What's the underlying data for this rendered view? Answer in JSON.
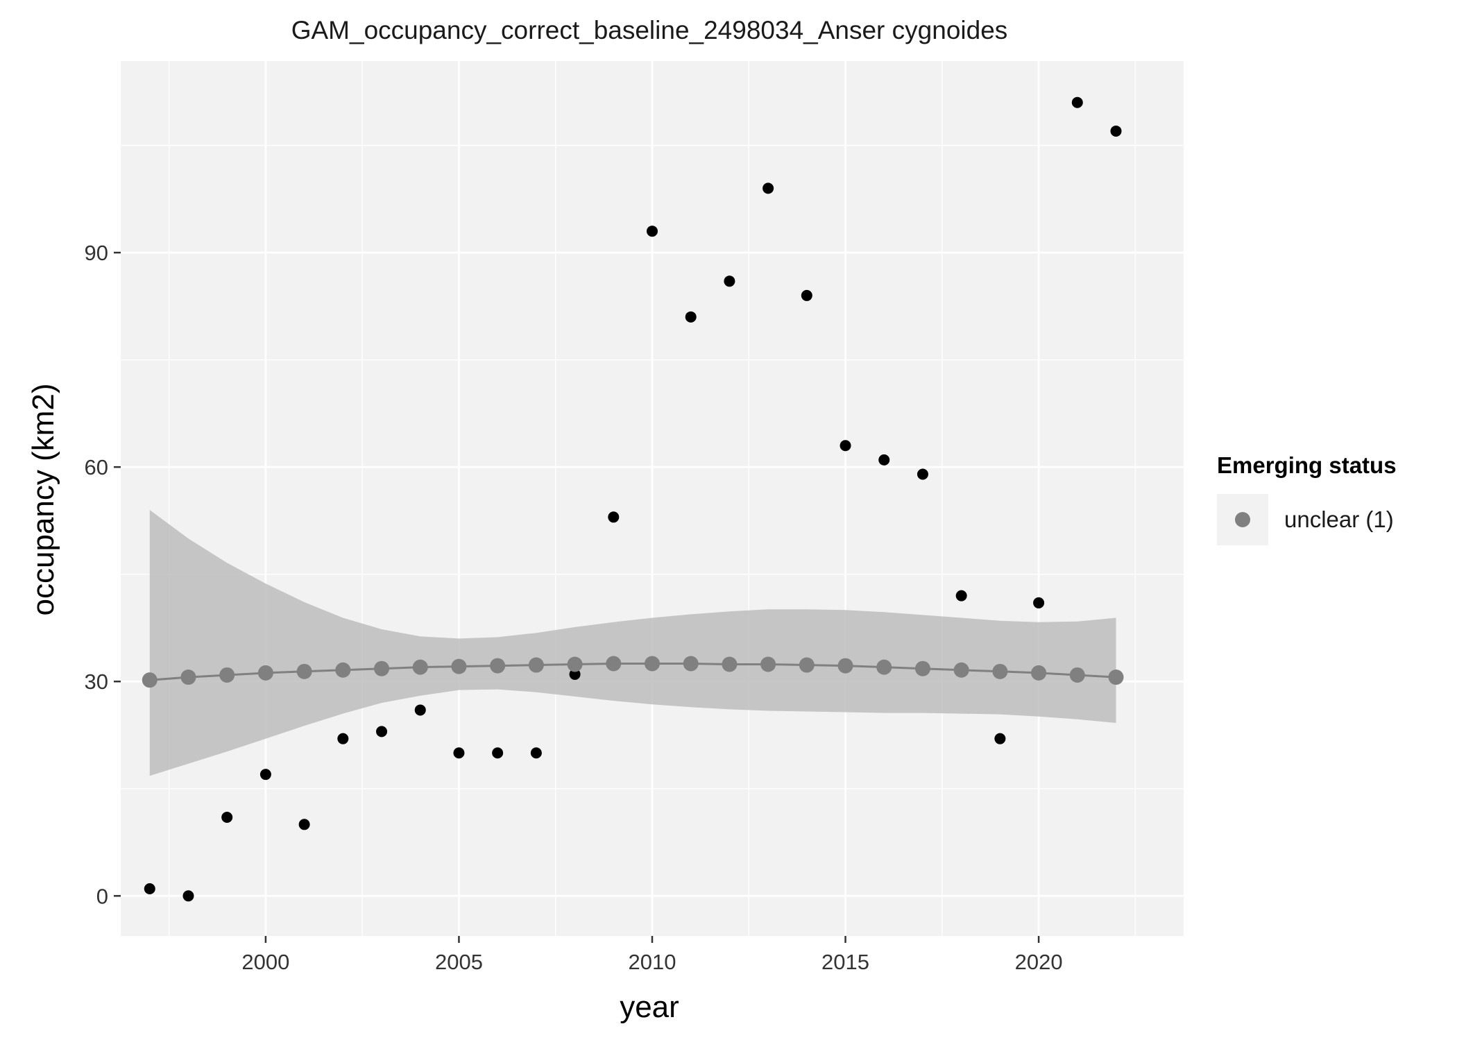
{
  "chart_data": {
    "type": "scatter",
    "title": "GAM_occupancy_correct_baseline_2498034_Anser cygnoides",
    "xlabel": "year",
    "ylabel": "occupancy (km2)",
    "xlim": [
      1996.25,
      2023.75
    ],
    "ylim": [
      -5.6,
      116.8
    ],
    "x_ticks": [
      2000,
      2005,
      2010,
      2015,
      2020
    ],
    "y_ticks": [
      0,
      30,
      60,
      90
    ],
    "grid": true,
    "legend": {
      "title": "Emerging status",
      "position": "right",
      "entries": [
        {
          "label": "unclear (1)",
          "color": "#808080"
        }
      ]
    },
    "series": [
      {
        "kind": "points",
        "color": "#000000",
        "x": [
          1997,
          1998,
          1999,
          2000,
          2001,
          2002,
          2003,
          2004,
          2005,
          2006,
          2007,
          2008,
          2009,
          2010,
          2011,
          2012,
          2013,
          2014,
          2015,
          2016,
          2017,
          2018,
          2019,
          2020,
          2021,
          2022
        ],
        "values": [
          1,
          0,
          11,
          17,
          10,
          22,
          23,
          26,
          20,
          20,
          20,
          31,
          53,
          93,
          81,
          86,
          99,
          84,
          63,
          61,
          59,
          42,
          22,
          41,
          111,
          107
        ]
      },
      {
        "name": "unclear (1)",
        "kind": "fit",
        "color": "#808080",
        "x": [
          1997,
          1998,
          1999,
          2000,
          2001,
          2002,
          2003,
          2004,
          2005,
          2006,
          2007,
          2008,
          2009,
          2010,
          2011,
          2012,
          2013,
          2014,
          2015,
          2016,
          2017,
          2018,
          2019,
          2020,
          2021,
          2022
        ],
        "values": [
          30.2,
          30.6,
          30.9,
          31.2,
          31.4,
          31.6,
          31.8,
          32.0,
          32.1,
          32.2,
          32.3,
          32.4,
          32.5,
          32.5,
          32.5,
          32.4,
          32.4,
          32.3,
          32.2,
          32.0,
          31.8,
          31.6,
          31.4,
          31.2,
          30.9,
          30.6
        ],
        "lower": [
          16.8,
          18.5,
          20.2,
          22.0,
          23.8,
          25.5,
          27.0,
          28.0,
          28.8,
          28.9,
          28.5,
          27.9,
          27.3,
          26.8,
          26.4,
          26.1,
          25.9,
          25.8,
          25.7,
          25.6,
          25.6,
          25.5,
          25.4,
          25.1,
          24.7,
          24.2
        ],
        "upper": [
          54.0,
          50.0,
          46.6,
          43.7,
          41.1,
          38.9,
          37.3,
          36.3,
          36.0,
          36.2,
          36.8,
          37.6,
          38.3,
          38.9,
          39.4,
          39.8,
          40.1,
          40.1,
          40.0,
          39.7,
          39.3,
          38.9,
          38.5,
          38.3,
          38.4,
          38.9
        ]
      }
    ],
    "colors": {
      "panel_background": "#f2f2f2",
      "grid": "#ffffff",
      "ribbon": "#bdbdbd",
      "legend_key_background": "#f2f2f2"
    }
  }
}
